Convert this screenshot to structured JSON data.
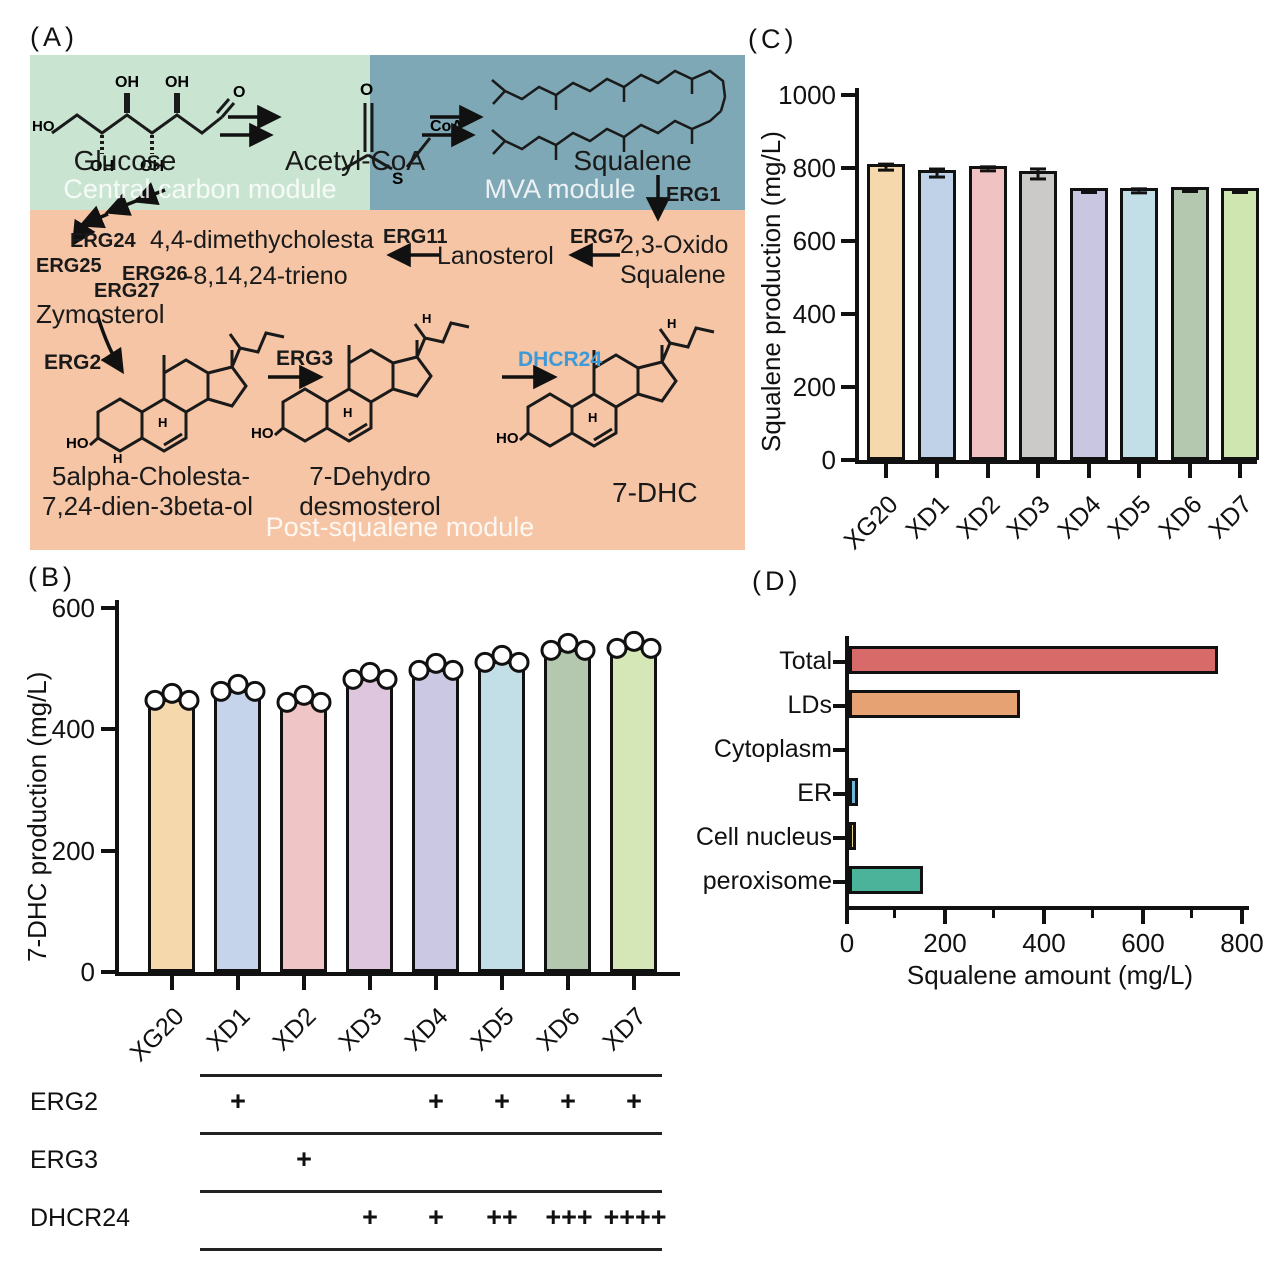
{
  "figure": {
    "panel_labels": {
      "a": "(A)",
      "b": "(B)",
      "c": "(C)",
      "d": "(D)"
    }
  },
  "pathway": {
    "modules": [
      {
        "name": "Central carbon module",
        "color": "#c9e5d1"
      },
      {
        "name": "MVA module",
        "color": "#7ea8b5"
      },
      {
        "name": "Post-squalene module",
        "color": "#f5c5a6"
      }
    ],
    "dhcr24_color": "#3d9ad8",
    "labels": {
      "glucose": "Glucose",
      "acetyl_coa": "Acetyl-CoA",
      "squalene": "Squalene",
      "erg1": "ERG1",
      "oxido_line1": "2,3-Oxido",
      "oxido_line2": "Squalene",
      "erg7": "ERG7",
      "lanosterol": "Lanosterol",
      "erg11": "ERG11",
      "dimethy_line1": "4,4-dimethycholesta",
      "dimethy_line2": "-8,14,24-trieno",
      "erg24": "ERG24",
      "erg25": "ERG25",
      "erg26": "ERG26",
      "erg27": "ERG27",
      "zymosterol": "Zymosterol",
      "erg2": "ERG2",
      "cholesta_line1": "5alpha-Cholesta-",
      "cholesta_line2": "7,24-dien-3beta-ol",
      "erg3": "ERG3",
      "dehydro_line1": "7-Dehydro",
      "dehydro_line2": "desmosterol",
      "dhcr24": "DHCR24",
      "dhc": "7-DHC"
    },
    "atoms": {
      "ho": "HO",
      "oh": "OH",
      "o": "O",
      "s": "S",
      "coa": "CoA",
      "h": "H"
    }
  },
  "chart_data": [
    {
      "id": "B",
      "type": "bar",
      "ylabel": "7-DHC production (mg/L)",
      "categories": [
        "XG20",
        "XD1",
        "XD2",
        "XD3",
        "XD4",
        "XD5",
        "XD6",
        "XD7"
      ],
      "values": [
        450,
        465,
        447,
        485,
        500,
        512,
        532,
        535
      ],
      "points_per_bar": 3,
      "ylim": [
        0,
        600
      ],
      "yticks": [
        0,
        200,
        400,
        600
      ],
      "bar_colors": [
        "#f5d9ac",
        "#c5d4ea",
        "#f0c5c5",
        "#ddc6de",
        "#cac8e3",
        "#c2dfe8",
        "#b4c8af",
        "#d5e7b7"
      ]
    },
    {
      "id": "C",
      "type": "bar",
      "ylabel": "Squalene production (mg/L)",
      "categories": [
        "XG20",
        "XD1",
        "XD2",
        "XD3",
        "XD4",
        "XD5",
        "XD6",
        "XD7"
      ],
      "values": [
        810,
        795,
        805,
        792,
        746,
        746,
        747,
        746
      ],
      "errors": [
        12,
        15,
        10,
        18,
        8,
        10,
        8,
        8
      ],
      "ylim": [
        0,
        1000
      ],
      "yticks": [
        0,
        200,
        400,
        600,
        800,
        1000
      ],
      "bar_colors": [
        "#f5d9ac",
        "#c0d2e8",
        "#f0c2c2",
        "#cbcac9",
        "#c9c6e2",
        "#c2dfe8",
        "#b4c8af",
        "#cfe6b0"
      ]
    },
    {
      "id": "D",
      "type": "bar-horizontal",
      "xlabel": "Squalene amount (mg/L)",
      "categories": [
        "Total",
        "LDs",
        "Cytoplasm",
        "ER",
        "Cell nucleus",
        "peroxisome"
      ],
      "values": [
        745,
        345,
        0,
        18,
        14,
        150
      ],
      "xlim": [
        0,
        800
      ],
      "xticks": [
        0,
        200,
        400,
        600,
        800
      ],
      "bar_colors": [
        "#d96a6a",
        "#e6a272",
        "#cccccc",
        "#72b8d8",
        "#e8cf7d",
        "#4bb399"
      ]
    }
  ],
  "genotype_table": {
    "columns": [
      "XD1",
      "XD2",
      "XD3",
      "XD4",
      "XD5",
      "XD6",
      "XD7"
    ],
    "rows": [
      {
        "label": "ERG2",
        "cells": [
          "+",
          "",
          "",
          "+",
          "+",
          "+",
          "+"
        ]
      },
      {
        "label": "ERG3",
        "cells": [
          "",
          "+",
          "",
          "",
          "",
          "",
          ""
        ]
      },
      {
        "label": "DHCR24",
        "cells": [
          "",
          "",
          "+",
          "+",
          "++",
          "+++",
          "++++"
        ]
      }
    ]
  }
}
